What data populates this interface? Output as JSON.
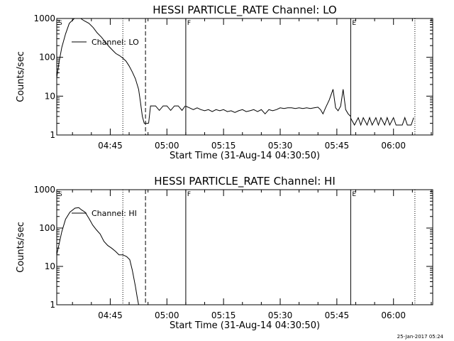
{
  "timestamp": "25-Jan-2017 05:24",
  "chart_data": [
    {
      "type": "line",
      "title": "HESSI PARTICLE_RATE Channel: LO",
      "xlabel": "Start Time (31-Aug-14 04:30:50)",
      "ylabel": "Counts/sec",
      "y_scale": "log",
      "ylim": [
        1,
        1000
      ],
      "y_ticks": [
        1,
        10,
        100,
        1000
      ],
      "x_tick_labels": [
        "04:45",
        "05:00",
        "05:15",
        "05:30",
        "05:45",
        "06:00"
      ],
      "legend": "Channel: LO",
      "legend_placement": "top-left",
      "marker_labels": [
        {
          "text": "S",
          "at": "04:30:50"
        },
        {
          "text": "F",
          "at": "05:05:00"
        },
        {
          "text": "E",
          "at": "05:48:40"
        }
      ],
      "vlines": [
        {
          "x": "04:48:20",
          "style": "dotted"
        },
        {
          "x": "04:54:20",
          "style": "dashed"
        },
        {
          "x": "05:05:00",
          "style": "solid"
        },
        {
          "x": "05:48:40",
          "style": "solid"
        },
        {
          "x": "06:05:40",
          "style": "dotted"
        }
      ],
      "series": [
        {
          "name": "Channel: LO",
          "segments": [
            {
              "x": [
                "04:30:50",
                "04:31:30",
                "04:32:10",
                "04:33:10",
                "04:34:10",
                "04:35:30",
                "04:36:30",
                "04:37:10",
                "04:38:00",
                "04:39:20",
                "04:40:30",
                "04:41:30",
                "04:42:40",
                "04:43:40",
                "04:44:40",
                "04:45:40",
                "04:46:30",
                "04:47:30",
                "04:48:20",
                "04:49:10",
                "04:50:00",
                "04:50:50",
                "04:51:40",
                "04:52:30",
                "04:53:00",
                "04:53:30",
                "04:54:00",
                "04:54:40",
                "04:55:10"
              ],
              "y": [
                30,
                80,
                180,
                400,
                750,
                1000,
                1050,
                1000,
                880,
                750,
                580,
                430,
                330,
                250,
                190,
                150,
                125,
                110,
                95,
                80,
                60,
                42,
                28,
                15,
                7,
                3,
                2,
                2,
                2
              ]
            },
            {
              "x": [
                "04:55:10",
                "04:55:40",
                "04:56:20",
                "04:57:00",
                "04:58:00",
                "04:59:00",
                "05:00:00",
                "05:01:00",
                "05:02:00",
                "05:03:00",
                "05:04:00",
                "05:04:50"
              ],
              "y": [
                2,
                5.6,
                5.6,
                5.6,
                4.3,
                5.6,
                5.6,
                4.3,
                5.6,
                5.6,
                4.3,
                5.6
              ]
            },
            {
              "x": [
                "05:05:00",
                "05:06:00",
                "05:07:00",
                "05:08:00",
                "05:09:00",
                "05:10:00",
                "05:11:00",
                "05:12:00",
                "05:13:00",
                "05:14:00",
                "05:15:00",
                "05:16:00",
                "05:17:00",
                "05:18:00",
                "05:19:00",
                "05:20:00",
                "05:21:00",
                "05:22:00",
                "05:23:00",
                "05:24:00",
                "05:25:00",
                "05:26:00",
                "05:27:00",
                "05:28:00",
                "05:29:00",
                "05:30:00",
                "05:31:00",
                "05:32:00",
                "05:33:00",
                "05:34:00",
                "05:35:00",
                "05:36:00",
                "05:37:00",
                "05:38:00",
                "05:39:00",
                "05:40:00",
                "05:40:40",
                "05:41:20",
                "05:42:00",
                "05:43:00",
                "05:44:00",
                "05:44:40",
                "05:45:20",
                "05:46:00",
                "05:46:40",
                "05:47:20",
                "05:48:00",
                "05:48:40"
              ],
              "y": [
                5.5,
                5,
                4.5,
                5,
                4.5,
                4.2,
                4.5,
                4,
                4.5,
                4.2,
                4.5,
                4,
                4.2,
                3.8,
                4.2,
                4.5,
                4,
                4.2,
                4.5,
                4,
                4.5,
                3.5,
                4.5,
                4.2,
                4.5,
                5,
                4.8,
                5,
                5,
                4.8,
                5,
                4.8,
                5,
                4.8,
                5,
                5.2,
                4.5,
                3.5,
                5,
                8,
                15,
                5,
                4.2,
                5.5,
                15,
                4.5,
                3.5,
                3
              ]
            },
            {
              "x": [
                "05:48:40",
                "05:49:40",
                "05:50:40",
                "05:51:20",
                "05:52:00",
                "05:53:00",
                "05:53:40",
                "05:54:20",
                "05:55:20",
                "05:56:00",
                "05:56:40",
                "05:57:40",
                "05:58:20",
                "05:59:00",
                "06:00:00",
                "06:00:40",
                "06:01:20",
                "06:02:20",
                "06:03:00",
                "06:03:40",
                "06:04:40",
                "06:05:20"
              ],
              "y": [
                2.7,
                1.8,
                2.8,
                1.8,
                2.8,
                1.8,
                2.8,
                1.8,
                2.8,
                1.8,
                2.8,
                1.8,
                2.8,
                1.8,
                2.8,
                1.8,
                1.8,
                1.8,
                2.8,
                1.8,
                1.8,
                2.8
              ]
            }
          ]
        }
      ]
    },
    {
      "type": "line",
      "title": "HESSI PARTICLE_RATE Channel: HI",
      "xlabel": "Start Time (31-Aug-14 04:30:50)",
      "ylabel": "Counts/sec",
      "y_scale": "log",
      "ylim": [
        1,
        1000
      ],
      "y_ticks": [
        1,
        10,
        100,
        1000
      ],
      "x_tick_labels": [
        "04:45",
        "05:00",
        "05:15",
        "05:30",
        "05:45",
        "06:00"
      ],
      "legend": "Channel: HI",
      "legend_placement": "top-left",
      "marker_labels": [
        {
          "text": "S",
          "at": "04:30:50"
        },
        {
          "text": "F",
          "at": "05:05:00"
        },
        {
          "text": "E",
          "at": "05:48:40"
        }
      ],
      "vlines": [
        {
          "x": "04:48:20",
          "style": "dotted"
        },
        {
          "x": "04:54:20",
          "style": "dashed"
        },
        {
          "x": "05:05:00",
          "style": "solid"
        },
        {
          "x": "05:48:40",
          "style": "solid"
        },
        {
          "x": "06:05:40",
          "style": "dotted"
        }
      ],
      "series": [
        {
          "name": "Channel: HI",
          "segments": [
            {
              "x": [
                "04:30:50",
                "04:31:30",
                "04:32:10",
                "04:33:10",
                "04:34:20",
                "04:35:40",
                "04:36:40",
                "04:37:20",
                "04:38:20",
                "04:39:20",
                "04:40:20",
                "04:41:20",
                "04:42:20",
                "04:43:20",
                "04:44:20",
                "04:45:20",
                "04:46:20",
                "04:47:20",
                "04:48:20",
                "04:49:20",
                "04:50:10",
                "04:50:50",
                "04:51:40",
                "04:52:10",
                "04:52:30"
              ],
              "y": [
                20,
                40,
                80,
                170,
                260,
                330,
                340,
                300,
                260,
                180,
                120,
                90,
                70,
                45,
                35,
                30,
                25,
                20,
                20,
                18,
                15,
                8,
                3,
                1.5,
                1
              ]
            }
          ]
        }
      ]
    }
  ]
}
